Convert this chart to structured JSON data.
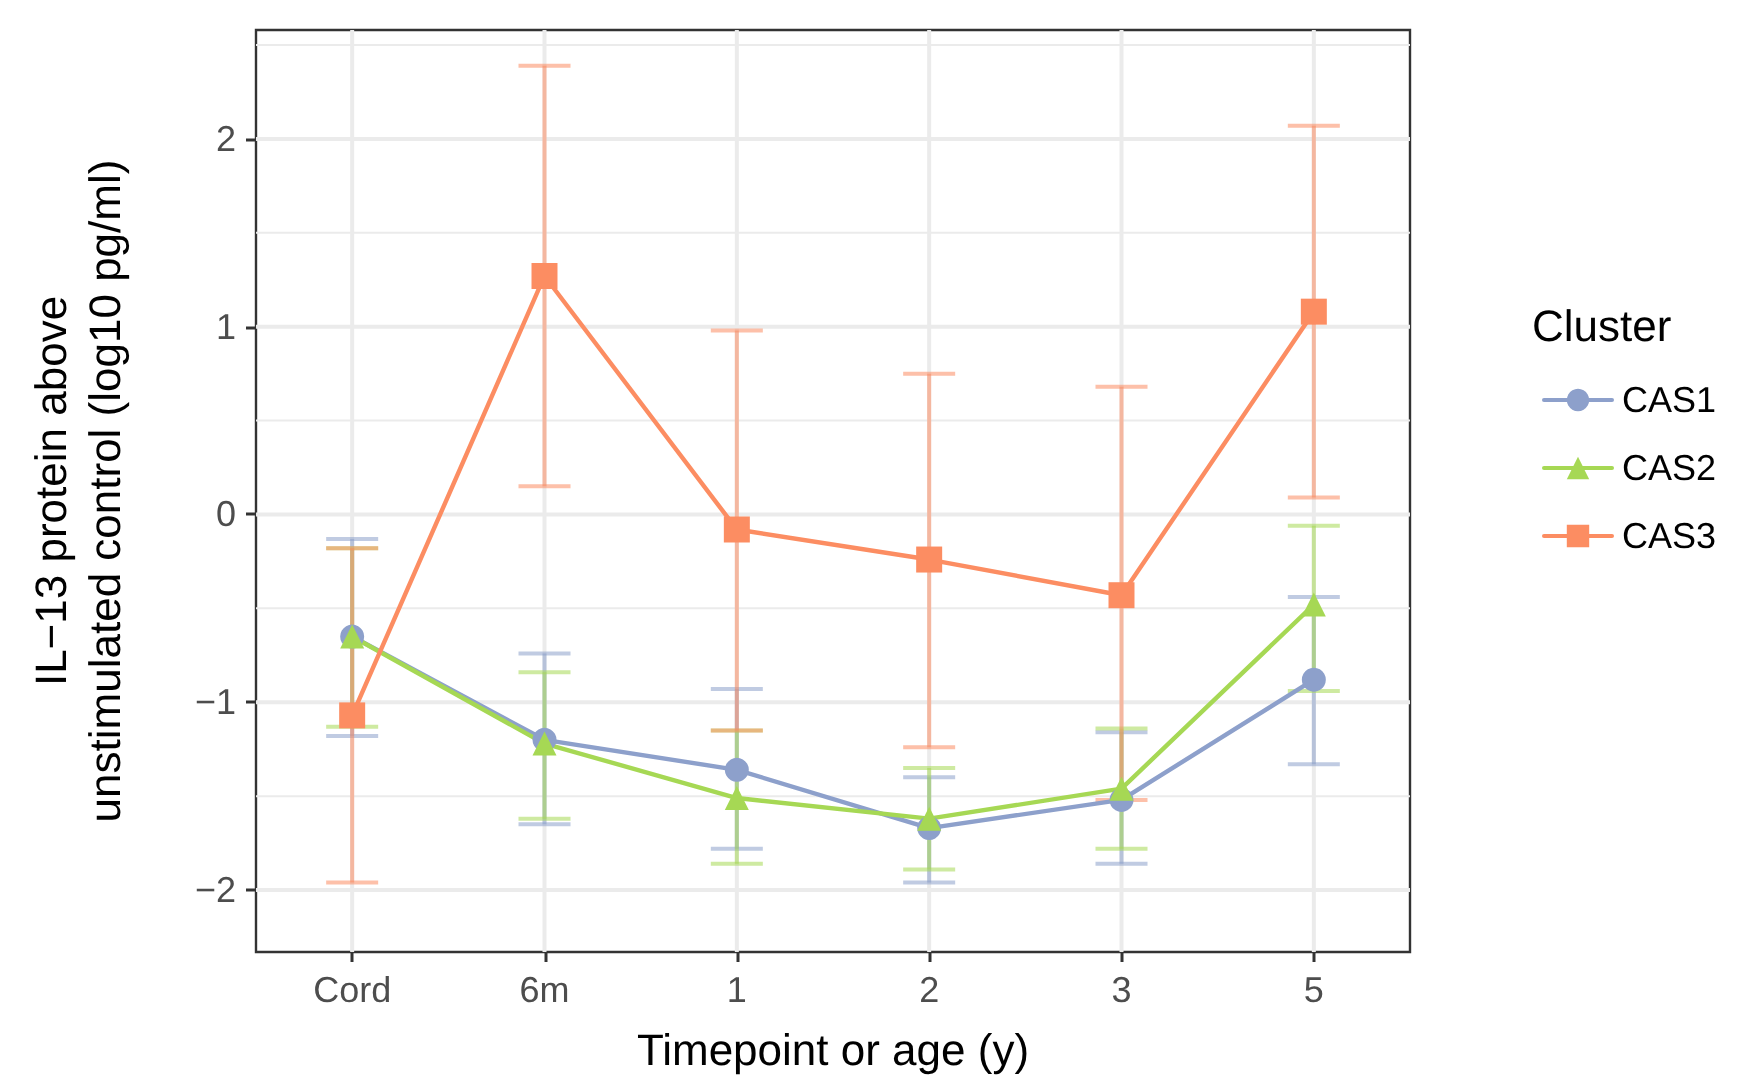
{
  "chart_data": {
    "type": "line",
    "xlabel": "Timepoint or age (y)",
    "ylabel": "IL−13 protein above\nunstimulated control (log10 pg/ml)",
    "legend_title": "Cluster",
    "categories": [
      "Cord",
      "6m",
      "1",
      "2",
      "3",
      "5"
    ],
    "ylim": [
      -2.33,
      2.58
    ],
    "yticks": [
      -2,
      {
        "value": -1.5,
        "label": null
      },
      -1,
      {
        "value": -0.5,
        "label": null
      },
      0,
      {
        "value": 0.5,
        "label": null
      },
      1,
      {
        "value": 1.5,
        "label": null
      },
      2,
      {
        "value": 2.5,
        "label": null
      }
    ],
    "grid": true,
    "legend": "right",
    "line_style": "solid",
    "series": [
      {
        "name": "CAS1",
        "color": "#8da0cb",
        "marker": "circle",
        "values": [
          -0.65,
          -1.2,
          -1.36,
          -1.67,
          -1.52,
          -0.88
        ],
        "errors": [
          [
            -1.18,
            -0.13
          ],
          [
            -1.65,
            -0.74
          ],
          [
            -1.78,
            -0.93
          ],
          [
            -1.96,
            -1.4
          ],
          [
            -1.86,
            -1.16
          ],
          [
            -1.33,
            -0.44
          ]
        ]
      },
      {
        "name": "CAS2",
        "color": "#a6d854",
        "marker": "triangle",
        "values": [
          -0.65,
          -1.22,
          -1.51,
          -1.62,
          -1.46,
          -0.48
        ],
        "errors": [
          [
            -1.13,
            -0.18
          ],
          [
            -1.62,
            -0.84
          ],
          [
            -1.86,
            -1.15
          ],
          [
            -1.89,
            -1.35
          ],
          [
            -1.78,
            -1.14
          ],
          [
            -0.94,
            -0.06
          ]
        ]
      },
      {
        "name": "CAS3",
        "color": "#fc8d62",
        "marker": "square",
        "values": [
          -1.07,
          1.27,
          -0.08,
          -0.24,
          -0.43,
          1.08
        ],
        "errors": [
          [
            -1.96,
            -0.18
          ],
          [
            0.15,
            2.39
          ],
          [
            -1.15,
            0.98
          ],
          [
            -1.24,
            0.75
          ],
          [
            -1.52,
            0.68
          ],
          [
            0.09,
            2.07
          ]
        ]
      }
    ]
  }
}
